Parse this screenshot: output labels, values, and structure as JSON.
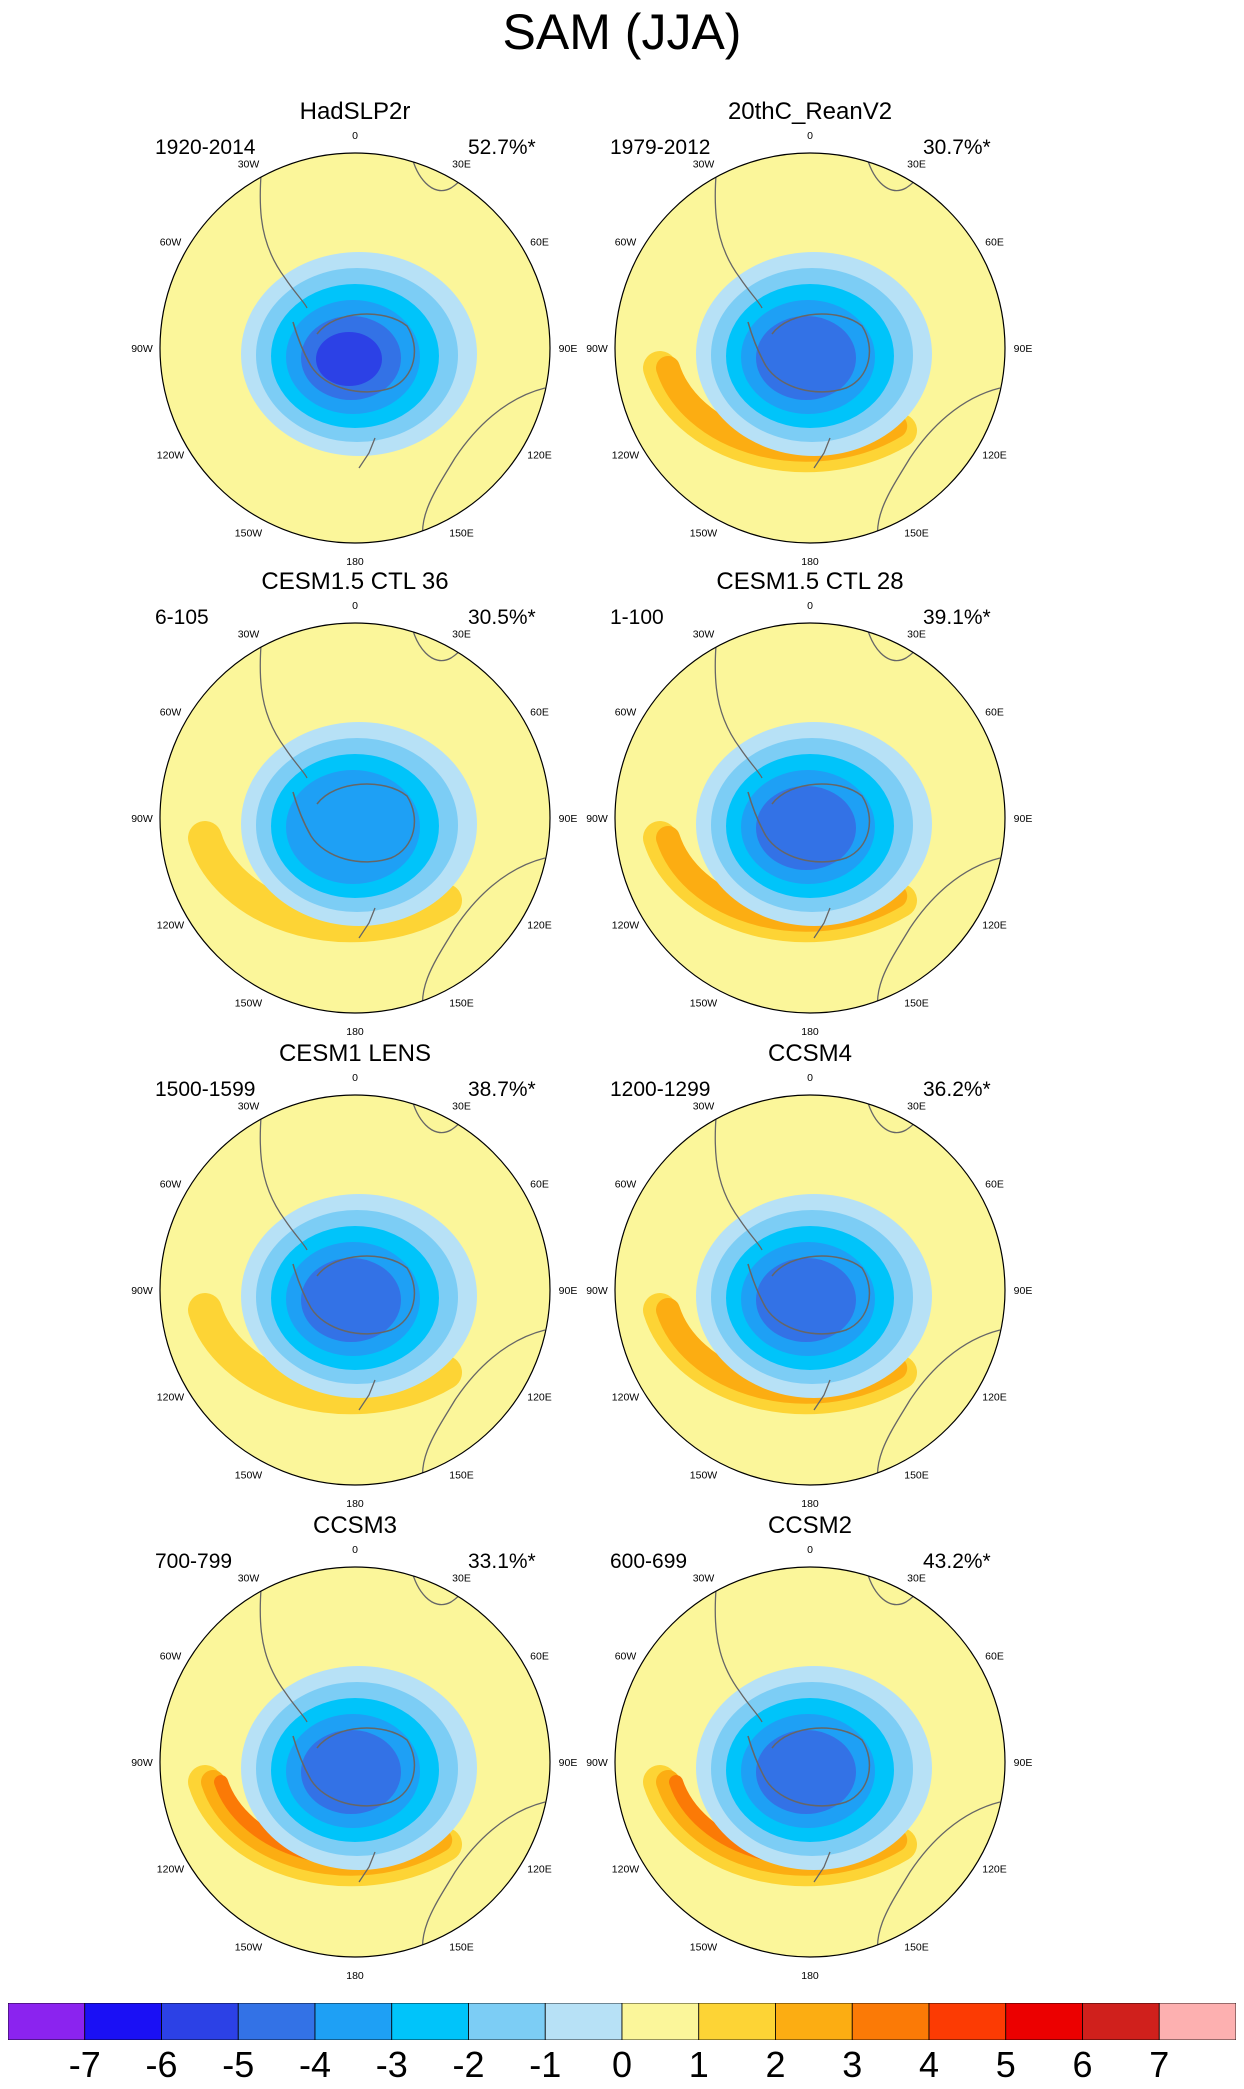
{
  "title": "SAM (JJA)",
  "longitude_labels": [
    "0",
    "30E",
    "60E",
    "90E",
    "120E",
    "150E",
    "180",
    "150W",
    "120W",
    "90W",
    "60W",
    "30W"
  ],
  "panels": [
    {
      "title": "HadSLP2r",
      "period": "1920-2014",
      "variance": "52.7%*",
      "min_value": -6,
      "max_value": 0
    },
    {
      "title": "20thC_ReanV2",
      "period": "1979-2012",
      "variance": "30.7%*",
      "min_value": -5,
      "max_value": 3
    },
    {
      "title": "CESM1.5 CTL 36",
      "period": "6-105",
      "variance": "30.5%*",
      "min_value": -4,
      "max_value": 2
    },
    {
      "title": "CESM1.5 CTL 28",
      "period": "1-100",
      "variance": "39.1%*",
      "min_value": -5,
      "max_value": 3
    },
    {
      "title": "CESM1 LENS",
      "period": "1500-1599",
      "variance": "38.7%*",
      "min_value": -5,
      "max_value": 2
    },
    {
      "title": "CCSM4",
      "period": "1200-1299",
      "variance": "36.2%*",
      "min_value": -5,
      "max_value": 3
    },
    {
      "title": "CCSM3",
      "period": "700-799",
      "variance": "33.1%*",
      "min_value": -5,
      "max_value": 4
    },
    {
      "title": "CCSM2",
      "period": "600-699",
      "variance": "43.2%*",
      "min_value": -5,
      "max_value": 4
    }
  ],
  "colorbar": {
    "labels": [
      "-7",
      "-6",
      "-5",
      "-4",
      "-3",
      "-2",
      "-1",
      "0",
      "1",
      "2",
      "3",
      "4",
      "5",
      "6",
      "7"
    ],
    "colors": [
      "#8b23ef",
      "#1a10f5",
      "#2c41e6",
      "#3372e6",
      "#1ea0f5",
      "#00c4fa",
      "#7ccdf5",
      "#b7e1f6",
      "#fbf69a",
      "#fdd435",
      "#fcad12",
      "#fb7a06",
      "#fc3b03",
      "#ec0000",
      "#d0201c",
      "#fdb0b0"
    ]
  }
}
